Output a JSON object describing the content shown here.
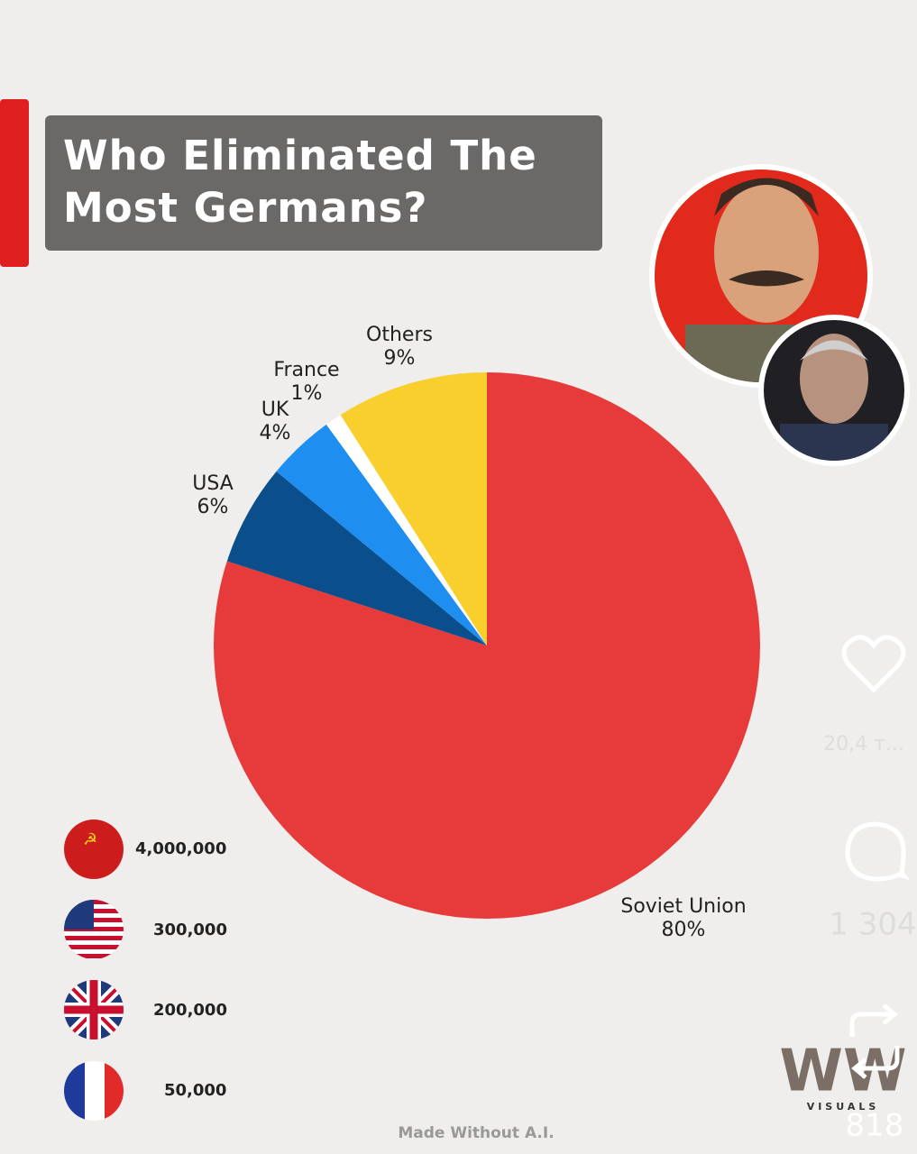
{
  "chart_data": {
    "type": "pie",
    "title": "Who Eliminated The Most Germans?",
    "categories": [
      "Soviet Union",
      "USA",
      "UK",
      "France",
      "Others"
    ],
    "values": [
      80,
      6,
      4,
      1,
      9
    ],
    "value_labels": [
      "80%",
      "6%",
      "4%",
      "1%",
      "9%"
    ],
    "colors": [
      "#e63b3a",
      "#0a4f8c",
      "#1e8ff0",
      "#ffffff",
      "#f9cf2e"
    ]
  },
  "counts": [
    "4,000,000",
    "300,000",
    "200,000",
    "50,000"
  ],
  "footer": "Made Without A.I.",
  "watermark": {
    "logo": "WW",
    "sub": "VISUALS"
  },
  "sidebar": {
    "likes": "20,4 т...",
    "comments": "1 304",
    "reposts": "818"
  }
}
